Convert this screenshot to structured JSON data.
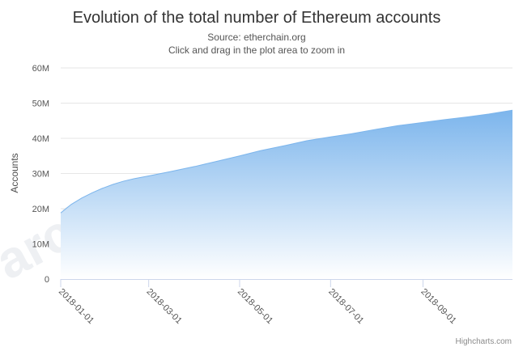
{
  "chart_data": {
    "type": "area",
    "title": "Evolution of the total number of Ethereum accounts",
    "subtitle_source": "Source: etherchain.org",
    "subtitle_hint": "Click and drag in the plot area to zoom in",
    "xlabel": "",
    "ylabel": "Accounts",
    "credits": "Highcharts.com",
    "watermark": "arch",
    "ylim": [
      0,
      60000000
    ],
    "y_ticks": [
      0,
      10000000,
      20000000,
      30000000,
      40000000,
      50000000,
      60000000
    ],
    "y_tick_labels": [
      "0",
      "10M",
      "20M",
      "30M",
      "40M",
      "50M",
      "60M"
    ],
    "xlim": [
      "2018-01-01",
      "2018-10-31"
    ],
    "x_ticks": [
      "2018-01-01",
      "2018-03-01",
      "2018-05-01",
      "2018-07-01",
      "2018-09-01"
    ],
    "x_tick_labels": [
      "2018-01-01",
      "2018-03-01",
      "2018-05-01",
      "2018-07-01",
      "2018-09-01"
    ],
    "grid": true,
    "legend": "none",
    "colors": {
      "line": "#7cb5ec",
      "fill_top": "#7cb5ec",
      "fill_bottom": "#ffffff",
      "grid": "#e6e6e6",
      "axis": "#ccd6eb"
    },
    "series": [
      {
        "x": [
          "2018-01-01",
          "2018-01-08",
          "2018-01-15",
          "2018-01-22",
          "2018-01-29",
          "2018-02-05",
          "2018-02-12",
          "2018-02-19",
          "2018-03-01",
          "2018-03-15",
          "2018-04-01",
          "2018-04-15",
          "2018-05-01",
          "2018-05-15",
          "2018-06-01",
          "2018-06-15",
          "2018-07-01",
          "2018-07-15",
          "2018-08-01",
          "2018-08-15",
          "2018-09-01",
          "2018-09-15",
          "2018-10-01",
          "2018-10-15",
          "2018-10-31"
        ],
        "values": [
          18800000,
          21200000,
          23000000,
          24500000,
          25800000,
          26900000,
          27800000,
          28500000,
          29300000,
          30500000,
          32000000,
          33400000,
          35000000,
          36500000,
          38000000,
          39300000,
          40400000,
          41300000,
          42600000,
          43600000,
          44500000,
          45300000,
          46100000,
          46900000,
          48000000
        ]
      }
    ]
  }
}
